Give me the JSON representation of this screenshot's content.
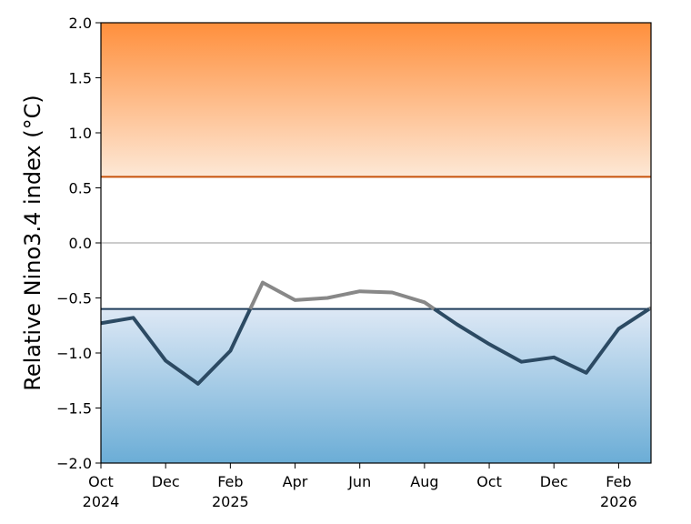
{
  "chart_data": {
    "type": "line",
    "title": "",
    "xlabel": "",
    "ylabel": "Relative Nino3.4 index (°C)",
    "ylim": [
      -2.0,
      2.0
    ],
    "xlim": [
      "2024-10",
      "2026-03"
    ],
    "grid": false,
    "y_ticks": [
      {
        "value": 2.0,
        "label": "2.0"
      },
      {
        "value": 1.5,
        "label": "1.5"
      },
      {
        "value": 1.0,
        "label": "1.0"
      },
      {
        "value": 0.5,
        "label": "0.5"
      },
      {
        "value": 0.0,
        "label": "0.0"
      },
      {
        "value": -0.5,
        "label": "−0.5"
      },
      {
        "value": -1.0,
        "label": "−1.0"
      },
      {
        "value": -1.5,
        "label": "−1.5"
      },
      {
        "value": -2.0,
        "label": "−2.0"
      }
    ],
    "x_ticks": [
      {
        "x": "2024-10",
        "label": "Oct",
        "year": "2024"
      },
      {
        "x": "2024-12",
        "label": "Dec",
        "year": ""
      },
      {
        "x": "2025-02",
        "label": "Feb",
        "year": "2025"
      },
      {
        "x": "2025-04",
        "label": "Apr",
        "year": ""
      },
      {
        "x": "2025-06",
        "label": "Jun",
        "year": ""
      },
      {
        "x": "2025-08",
        "label": "Aug",
        "year": ""
      },
      {
        "x": "2025-10",
        "label": "Oct",
        "year": ""
      },
      {
        "x": "2025-12",
        "label": "Dec",
        "year": ""
      },
      {
        "x": "2026-02",
        "label": "Feb",
        "year": "2026"
      }
    ],
    "thresholds": [
      {
        "value": 0.6,
        "color": "#c8520a"
      },
      {
        "value": -0.6,
        "color": "#1f3d5a"
      }
    ],
    "zero_line": {
      "value": 0.0,
      "color": "#999999"
    },
    "shading": [
      {
        "from": 0.6,
        "to": 2.0,
        "color_near": "#fde8d6",
        "color_far": "#ff8f3c"
      },
      {
        "from": -0.6,
        "to": -2.0,
        "color_near": "#dde8f5",
        "color_far": "#6badd6"
      }
    ],
    "series": [
      {
        "line_color": "#2c4a63",
        "highlight_color": "#888888",
        "highlight_above": -0.6,
        "x": [
          "2024-10",
          "2024-11",
          "2024-12",
          "2025-01",
          "2025-02",
          "2025-03",
          "2025-04",
          "2025-05",
          "2025-06",
          "2025-07",
          "2025-08",
          "2025-09",
          "2025-10",
          "2025-11",
          "2025-12",
          "2026-01",
          "2026-02",
          "2026-03"
        ],
        "values": [
          -0.73,
          -0.68,
          -1.07,
          -1.28,
          -0.98,
          -0.36,
          -0.52,
          -0.5,
          -0.44,
          -0.45,
          -0.54,
          -0.74,
          -0.92,
          -1.08,
          -1.04,
          -1.18,
          -0.78,
          -0.59
        ]
      }
    ]
  }
}
